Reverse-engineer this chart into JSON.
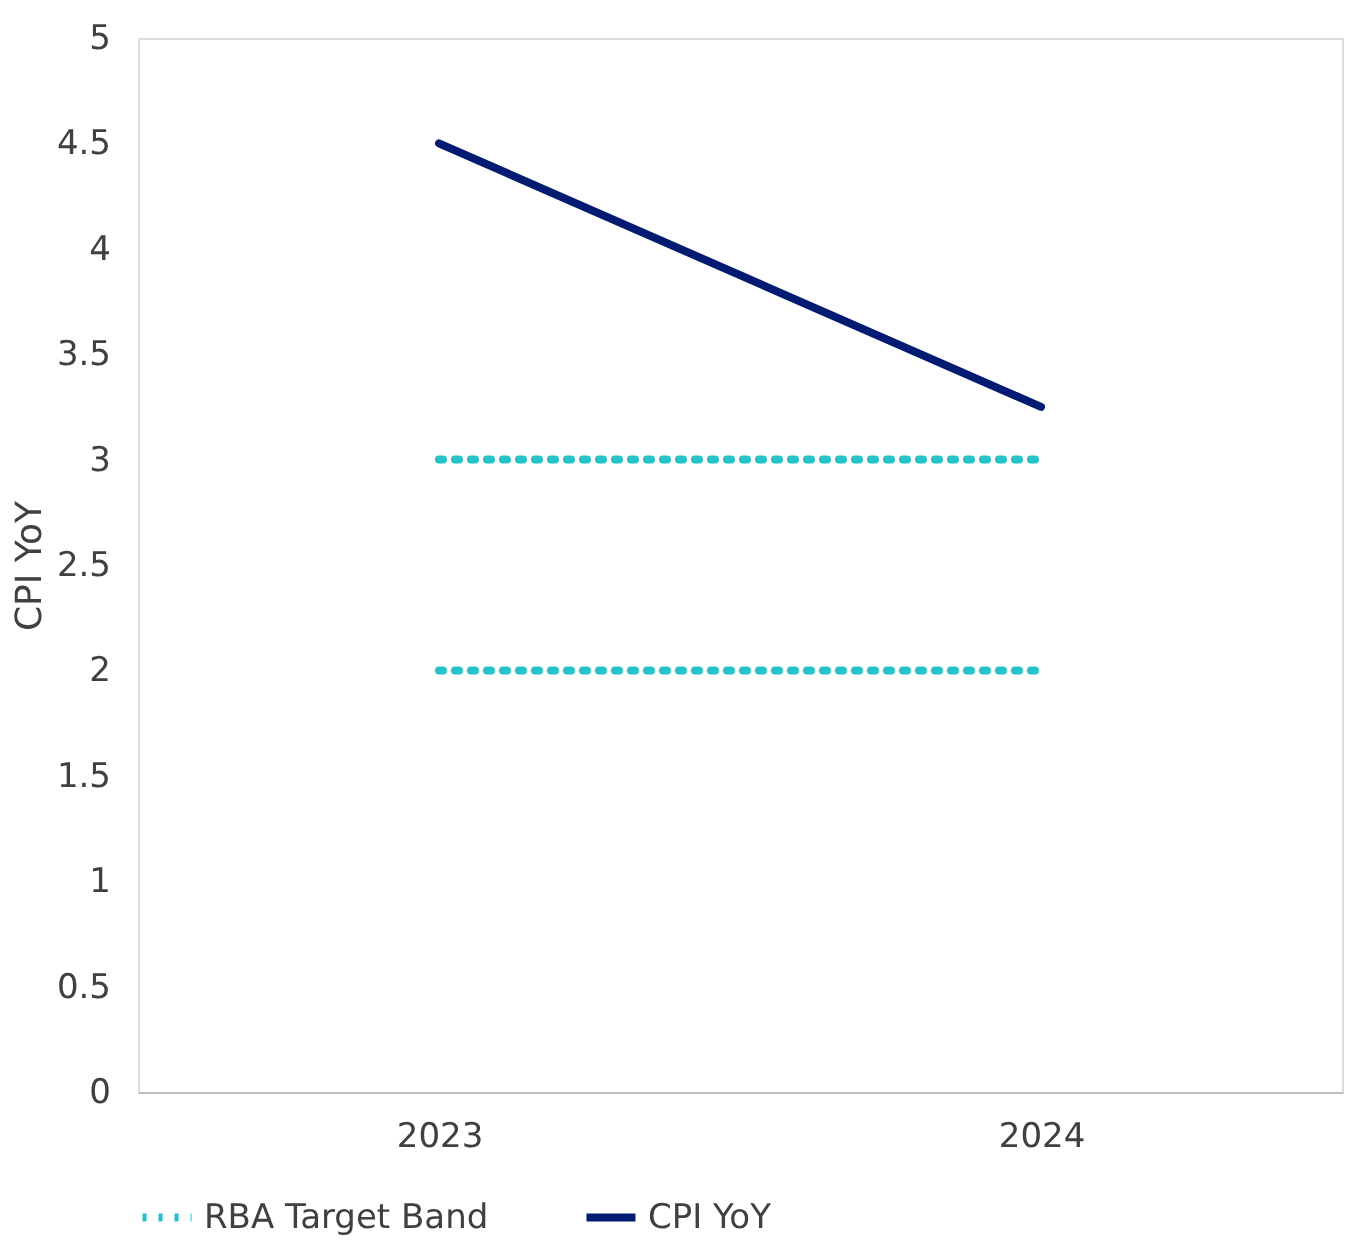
{
  "chart_data": {
    "type": "line",
    "ylabel": "CPI YoY",
    "categories": [
      "2023",
      "2024"
    ],
    "series": [
      {
        "name": "RBA Target Band",
        "color": "#26c1c9",
        "values": [
          3,
          3
        ],
        "line_style": "dotted"
      },
      {
        "color": "#26c1c9",
        "values": [
          2,
          2
        ],
        "line_style": "dotted"
      },
      {
        "name": "CPI YoY",
        "color": "#001b71",
        "values": [
          4.5,
          3.25
        ],
        "line_style": "solid"
      }
    ],
    "ylim": [
      0,
      5
    ],
    "yticks": [
      0,
      0.5,
      1,
      1.5,
      2,
      2.5,
      3,
      3.5,
      4,
      4.5,
      5
    ],
    "grid": false,
    "legend": "bottom",
    "marker": "none"
  }
}
